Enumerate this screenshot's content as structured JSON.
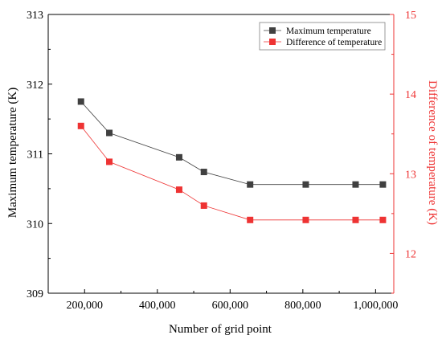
{
  "chart_data": {
    "type": "line",
    "xlabel": "Number of grid point",
    "ylabel_left": "Maximum temperature (K)",
    "ylabel_right": "Difference of temperature (K)",
    "xlim": [
      100000,
      1050000
    ],
    "ylim_left": [
      309,
      313
    ],
    "ylim_right": [
      11.5,
      15
    ],
    "x_ticks": [
      200000,
      400000,
      600000,
      800000,
      1000000
    ],
    "x_tick_labels": [
      "200,000",
      "400,000",
      "600,000",
      "800,000",
      "1,000,000"
    ],
    "y_left_ticks": [
      309,
      310,
      311,
      312,
      313
    ],
    "y_left_tick_labels": [
      "309",
      "310",
      "311",
      "312",
      "313"
    ],
    "y_right_ticks": [
      12,
      13,
      14,
      15
    ],
    "y_right_tick_labels": [
      "12",
      "13",
      "14",
      "15"
    ],
    "x": [
      190000,
      268000,
      460000,
      528000,
      655000,
      808000,
      945000,
      1020000
    ],
    "series": [
      {
        "name": "Maximum temperature",
        "axis": "left",
        "color": "#404040",
        "values": [
          311.75,
          311.3,
          310.95,
          310.74,
          310.56,
          310.56,
          310.56,
          310.56
        ]
      },
      {
        "name": "Difference of temperature",
        "axis": "right",
        "color": "#ee3333",
        "values": [
          13.6,
          13.15,
          12.8,
          12.6,
          12.42,
          12.42,
          12.42,
          12.42
        ]
      }
    ],
    "legend_position": "top-right",
    "grid": false
  }
}
